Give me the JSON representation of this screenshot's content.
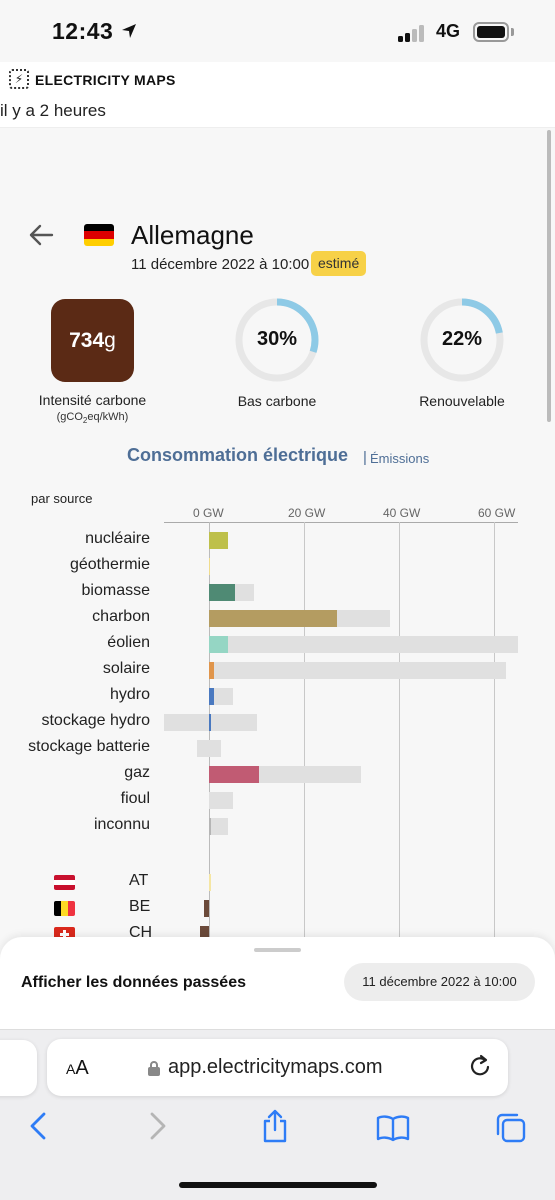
{
  "status_bar": {
    "time": "12:43",
    "network": "4G"
  },
  "app": {
    "title": "ELECTRICITY MAPS",
    "logo_glyph": "⚡",
    "updated": "il y a 2 heures"
  },
  "zone": {
    "name": "Allemagne",
    "datetime": "11 décembre 2022 à 10:00",
    "badge": "estimé",
    "flag_colors": [
      "#000000",
      "#dd0000",
      "#ffce00"
    ]
  },
  "metrics": {
    "carbon_intensity": {
      "value": "734",
      "unit": "g",
      "label": "Intensité carbone",
      "sub_pre": "(gCO",
      "sub_sub": "2",
      "sub_post": "eq/kWh)",
      "color": "#5b2a15"
    },
    "low_carbon": {
      "value": "30%",
      "fraction": 0.3,
      "label": "Bas carbone"
    },
    "renewable": {
      "value": "22%",
      "fraction": 0.22,
      "label": "Renouvelable"
    },
    "donut_color": "#8ecae6"
  },
  "tabs": {
    "active": "Consommation électrique",
    "separator": "|",
    "other": "Émissions"
  },
  "chart_data": {
    "type": "bar",
    "title": "par source",
    "x_ticks": [
      "0 GW",
      "20 GW",
      "40 GW",
      "60 GW"
    ],
    "xlim": [
      -10,
      65
    ],
    "categories": [
      "nucléaire",
      "géothermie",
      "biomasse",
      "charbon",
      "éolien",
      "solaire",
      "hydro",
      "stockage hydro",
      "stockage batterie",
      "gaz",
      "fioul",
      "inconnu"
    ],
    "production_gw": [
      4,
      0,
      5.5,
      27,
      4,
      1,
      1,
      0.3,
      0,
      10.5,
      0,
      0.5
    ],
    "capacity_gw": [
      4,
      0.2,
      9.5,
      38,
      65,
      62.5,
      5,
      [
        -9.5,
        10
      ],
      [
        -2.5,
        2.5
      ],
      32,
      5,
      4
    ],
    "colors": [
      "#bec04a",
      "#f0dc8c",
      "#4f8a74",
      "#b49c61",
      "#95d6c4",
      "#e0954b",
      "#4a79c0",
      "#4a79c0",
      "#4a79c0",
      "#c15b73",
      "#5a5a5a",
      "#b5b5b5"
    ],
    "exchanges": {
      "zones": [
        "AT",
        "BE",
        "CH"
      ],
      "values_gw": [
        0.3,
        -1,
        -2
      ],
      "colors": [
        "#f5e6a3",
        "#6b4a3a",
        "#6b4a3a"
      ]
    }
  },
  "sheet": {
    "label": "Afficher les données passées",
    "datetime": "11 décembre 2022 à 10:00"
  },
  "safari": {
    "url": "app.electricitymaps.com",
    "aa_small": "A",
    "aa_big": "A"
  }
}
